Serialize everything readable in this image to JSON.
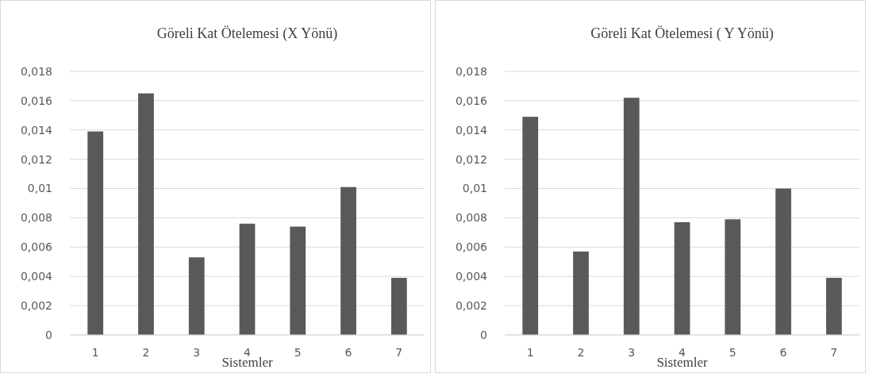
{
  "chart_data": [
    {
      "type": "bar",
      "title": "Göreli Kat Ötelemesi (X Yönü)",
      "xlabel": "Sistemler",
      "categories": [
        "1",
        "2",
        "3",
        "4",
        "5",
        "6",
        "7"
      ],
      "values": [
        0.0139,
        0.0165,
        0.0053,
        0.0076,
        0.0074,
        0.0101,
        0.0039
      ],
      "color": "#595959",
      "ylim": [
        0,
        0.018
      ],
      "yticks": [
        0,
        {
          "value": 0.002,
          "label": "0,002"
        },
        {
          "value": 0.004,
          "label": "0,004"
        },
        {
          "value": 0.006,
          "label": "0,006"
        },
        {
          "value": 0.008,
          "label": "0,008"
        },
        {
          "value": 0.01,
          "label": "0,01"
        },
        {
          "value": 0.012,
          "label": "0,012"
        },
        {
          "value": 0.014,
          "label": "0,014"
        },
        {
          "value": 0.016,
          "label": "0,016"
        },
        {
          "value": 0.018,
          "label": "0,018"
        }
      ],
      "grid": "y"
    },
    {
      "type": "bar",
      "title": "Göreli Kat Ötelemesi ( Y Yönü)",
      "xlabel": "Sistemler",
      "categories": [
        "1",
        "2",
        "3",
        "4",
        "5",
        "6",
        "7"
      ],
      "values": [
        0.0149,
        0.0057,
        0.0162,
        0.0077,
        0.0079,
        0.01,
        0.0039
      ],
      "color": "#595959",
      "ylim": [
        0,
        0.018
      ],
      "yticks": [
        0,
        {
          "value": 0.002,
          "label": "0,002"
        },
        {
          "value": 0.004,
          "label": "0,004"
        },
        {
          "value": 0.006,
          "label": "0,006"
        },
        {
          "value": 0.008,
          "label": "0,008"
        },
        {
          "value": 0.01,
          "label": "0,01"
        },
        {
          "value": 0.012,
          "label": "0,012"
        },
        {
          "value": 0.014,
          "label": "0,014"
        },
        {
          "value": 0.016,
          "label": "0,016"
        },
        {
          "value": 0.018,
          "label": "0,018"
        }
      ],
      "grid": "y"
    }
  ]
}
